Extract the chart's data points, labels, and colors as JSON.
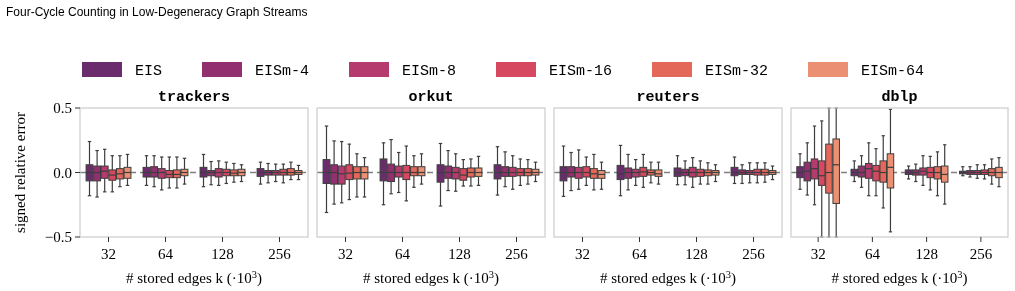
{
  "chart_data": [
    {
      "type": "box",
      "title": "trackers",
      "annotations": [
        "Four-Cycle Counting in Low-Degeneracy Graph Streams"
      ],
      "xlabel": "# stored edges k (·10$^{3}$)",
      "ylabel": "signed relative error",
      "categories": [
        "32",
        "64",
        "128",
        "256"
      ],
      "ylim": [
        -0.5,
        0.5
      ],
      "yticks": [
        {
          "value": -0.5,
          "label": "−0.5"
        },
        {
          "value": 0,
          "label": "0.0"
        },
        0.5
      ],
      "legend": "top",
      "ref_lines": [
        {
          "axis": "y",
          "value": 0,
          "color": "#808080",
          "line_style": "dashed"
        }
      ],
      "series": [
        {
          "name": "EIS",
          "color": "#6b2c6e",
          "boxes": [
            {
              "low": -0.18,
              "q1": -0.065,
              "median": 0,
              "q3": 0.06,
              "high": 0.24
            },
            {
              "low": -0.1,
              "q1": -0.035,
              "median": 0,
              "q3": 0.04,
              "high": 0.13
            },
            {
              "low": -0.11,
              "q1": -0.035,
              "median": 0,
              "q3": 0.04,
              "high": 0.14
            },
            {
              "low": -0.09,
              "q1": -0.03,
              "median": 0,
              "q3": 0.03,
              "high": 0.08
            }
          ]
        },
        {
          "name": "EISm-4",
          "color": "#922f6f",
          "boxes": [
            {
              "low": -0.19,
              "q1": -0.065,
              "median": 0,
              "q3": 0.05,
              "high": 0.17
            },
            {
              "low": -0.11,
              "q1": -0.035,
              "median": 0,
              "q3": 0.045,
              "high": 0.13
            },
            {
              "low": -0.095,
              "q1": -0.025,
              "median": 0,
              "q3": 0.015,
              "high": 0.085
            },
            {
              "low": -0.08,
              "q1": -0.02,
              "median": 0,
              "q3": 0.015,
              "high": 0.07
            }
          ]
        },
        {
          "name": "EISm-8",
          "color": "#b53a6d",
          "boxes": [
            {
              "low": -0.15,
              "q1": -0.045,
              "median": 0.01,
              "q3": 0.05,
              "high": 0.18
            },
            {
              "low": -0.135,
              "q1": -0.045,
              "median": 0,
              "q3": 0.03,
              "high": 0.12
            },
            {
              "low": -0.1,
              "q1": -0.035,
              "median": 0,
              "q3": 0.03,
              "high": 0.09
            },
            {
              "low": -0.07,
              "q1": -0.02,
              "median": 0,
              "q3": 0.015,
              "high": 0.065
            }
          ]
        },
        {
          "name": "EISm-16",
          "color": "#d6485f",
          "boxes": [
            {
              "low": -0.15,
              "q1": -0.06,
              "median": -0.02,
              "q3": 0.02,
              "high": 0.13
            },
            {
              "low": -0.12,
              "q1": -0.04,
              "median": -0.015,
              "q3": 0.015,
              "high": 0.12
            },
            {
              "low": -0.085,
              "q1": -0.025,
              "median": 0,
              "q3": 0.025,
              "high": 0.08
            },
            {
              "low": -0.08,
              "q1": -0.02,
              "median": 0,
              "q3": 0.025,
              "high": 0.065
            }
          ]
        },
        {
          "name": "EISm-32",
          "color": "#e4685a",
          "boxes": [
            {
              "low": -0.11,
              "q1": -0.05,
              "median": -0.01,
              "q3": 0.03,
              "high": 0.13
            },
            {
              "low": -0.12,
              "q1": -0.04,
              "median": -0.015,
              "q3": 0.02,
              "high": 0.12
            },
            {
              "low": -0.075,
              "q1": -0.025,
              "median": -0.005,
              "q3": 0.02,
              "high": 0.07
            },
            {
              "low": -0.055,
              "q1": -0.02,
              "median": 0,
              "q3": 0.03,
              "high": 0.08
            }
          ]
        },
        {
          "name": "EISm-64",
          "color": "#eb9072",
          "boxes": [
            {
              "low": -0.1,
              "q1": -0.045,
              "median": 0,
              "q3": 0.04,
              "high": 0.14
            },
            {
              "low": -0.09,
              "q1": -0.025,
              "median": 0,
              "q3": 0.025,
              "high": 0.11
            },
            {
              "low": -0.07,
              "q1": -0.025,
              "median": 0,
              "q3": 0.025,
              "high": 0.06
            },
            {
              "low": -0.055,
              "q1": -0.015,
              "median": 0,
              "q3": 0.015,
              "high": 0.055
            }
          ]
        }
      ]
    },
    {
      "type": "box",
      "title": "orkut",
      "xlabel": "# stored edges k (·10$^{3}$)",
      "categories": [
        "32",
        "64",
        "128",
        "256"
      ],
      "ylim": [
        -0.5,
        0.5
      ],
      "tick_labels": "x",
      "ref_lines": [
        {
          "axis": "y",
          "value": 0,
          "color": "#808080",
          "line_style": "dashed"
        }
      ],
      "series": [
        {
          "color": "#6b2c6e",
          "boxes": [
            {
              "low": -0.31,
              "q1": -0.085,
              "median": 0,
              "q3": 0.1,
              "high": 0.36
            },
            {
              "low": -0.25,
              "q1": -0.065,
              "median": 0,
              "q3": 0.105,
              "high": 0.23
            },
            {
              "low": -0.26,
              "q1": -0.075,
              "median": 0,
              "q3": 0.06,
              "high": 0.225
            },
            {
              "low": -0.175,
              "q1": -0.05,
              "median": 0,
              "q3": 0.06,
              "high": 0.2
            }
          ]
        },
        {
          "color": "#922f6f",
          "boxes": [
            {
              "low": -0.245,
              "q1": -0.09,
              "median": 0,
              "q3": 0.06,
              "high": 0.245
            },
            {
              "low": -0.165,
              "q1": -0.07,
              "median": 0,
              "q3": 0.065,
              "high": 0.255
            },
            {
              "low": -0.14,
              "q1": -0.045,
              "median": 0,
              "q3": 0.05,
              "high": 0.17
            },
            {
              "low": -0.11,
              "q1": -0.03,
              "median": 0,
              "q3": 0.045,
              "high": 0.16
            }
          ]
        },
        {
          "color": "#b53a6d",
          "boxes": [
            {
              "low": -0.235,
              "q1": -0.09,
              "median": -0.01,
              "q3": 0.05,
              "high": 0.24
            },
            {
              "low": -0.155,
              "q1": -0.035,
              "median": 0,
              "q3": 0.05,
              "high": 0.155
            },
            {
              "low": -0.145,
              "q1": -0.05,
              "median": 0,
              "q3": 0.04,
              "high": 0.145
            },
            {
              "low": -0.13,
              "q1": -0.03,
              "median": 0,
              "q3": 0.04,
              "high": 0.13
            }
          ]
        },
        {
          "color": "#d6485f",
          "boxes": [
            {
              "low": -0.21,
              "q1": -0.055,
              "median": -0.005,
              "q3": 0.06,
              "high": 0.22
            },
            {
              "low": -0.22,
              "q1": -0.055,
              "median": 0,
              "q3": 0.055,
              "high": 0.205
            },
            {
              "low": -0.105,
              "q1": -0.06,
              "median": -0.02,
              "q3": 0.03,
              "high": 0.1
            },
            {
              "low": -0.1,
              "q1": -0.025,
              "median": 0,
              "q3": 0.03,
              "high": 0.105
            }
          ]
        },
        {
          "color": "#e4685a",
          "boxes": [
            {
              "low": -0.19,
              "q1": -0.05,
              "median": 0,
              "q3": 0.045,
              "high": 0.145
            },
            {
              "low": -0.115,
              "q1": -0.025,
              "median": 0,
              "q3": 0.045,
              "high": 0.13
            },
            {
              "low": -0.105,
              "q1": -0.035,
              "median": 0,
              "q3": 0.035,
              "high": 0.105
            },
            {
              "low": -0.09,
              "q1": -0.025,
              "median": 0,
              "q3": 0.03,
              "high": 0.1
            }
          ]
        },
        {
          "color": "#eb9072",
          "boxes": [
            {
              "low": -0.19,
              "q1": -0.05,
              "median": 0,
              "q3": 0.045,
              "high": 0.115
            },
            {
              "low": -0.09,
              "q1": -0.025,
              "median": 0,
              "q3": 0.045,
              "high": 0.145
            },
            {
              "low": -0.1,
              "q1": -0.03,
              "median": 0,
              "q3": 0.035,
              "high": 0.125
            },
            {
              "low": -0.07,
              "q1": -0.02,
              "median": 0,
              "q3": 0.025,
              "high": 0.08
            }
          ]
        }
      ]
    },
    {
      "type": "box",
      "title": "reuters",
      "xlabel": "# stored edges k (·10$^{3}$)",
      "categories": [
        "32",
        "64",
        "128",
        "256"
      ],
      "ylim": [
        -0.5,
        0.5
      ],
      "tick_labels": "x",
      "ref_lines": [
        {
          "axis": "y",
          "value": 0,
          "color": "#808080",
          "line_style": "dashed"
        }
      ],
      "series": [
        {
          "color": "#6b2c6e",
          "boxes": [
            {
              "low": -0.185,
              "q1": -0.065,
              "median": 0,
              "q3": 0.045,
              "high": 0.205
            },
            {
              "low": -0.18,
              "q1": -0.055,
              "median": -0.01,
              "q3": 0.055,
              "high": 0.21
            },
            {
              "low": -0.095,
              "q1": -0.03,
              "median": 0,
              "q3": 0.035,
              "high": 0.13
            },
            {
              "low": -0.085,
              "q1": -0.025,
              "median": 0,
              "q3": 0.04,
              "high": 0.12
            }
          ]
        },
        {
          "color": "#922f6f",
          "boxes": [
            {
              "low": -0.14,
              "q1": -0.035,
              "median": 0,
              "q3": 0.045,
              "high": 0.155
            },
            {
              "low": -0.135,
              "q1": -0.045,
              "median": 0,
              "q3": 0.035,
              "high": 0.14
            },
            {
              "low": -0.095,
              "q1": -0.025,
              "median": 0,
              "q3": 0.025,
              "high": 0.09
            },
            {
              "low": -0.085,
              "q1": -0.015,
              "median": 0,
              "q3": 0.02,
              "high": 0.06
            }
          ]
        },
        {
          "color": "#b53a6d",
          "boxes": [
            {
              "low": -0.13,
              "q1": -0.045,
              "median": 0,
              "q3": 0.04,
              "high": 0.175
            },
            {
              "low": -0.1,
              "q1": -0.035,
              "median": 0,
              "q3": 0.025,
              "high": 0.1
            },
            {
              "low": -0.115,
              "q1": -0.035,
              "median": 0,
              "q3": 0.04,
              "high": 0.115
            },
            {
              "low": -0.08,
              "q1": -0.015,
              "median": 0,
              "q3": 0.015,
              "high": 0.075
            }
          ]
        },
        {
          "color": "#d6485f",
          "boxes": [
            {
              "low": -0.1,
              "q1": -0.035,
              "median": 0,
              "q3": 0.045,
              "high": 0.12
            },
            {
              "low": -0.115,
              "q1": -0.03,
              "median": 0.005,
              "q3": 0.04,
              "high": 0.14
            },
            {
              "low": -0.09,
              "q1": -0.03,
              "median": 0,
              "q3": 0.025,
              "high": 0.09
            },
            {
              "low": -0.08,
              "q1": -0.02,
              "median": 0,
              "q3": 0.025,
              "high": 0.075
            }
          ]
        },
        {
          "color": "#e4685a",
          "boxes": [
            {
              "low": -0.135,
              "q1": -0.045,
              "median": -0.01,
              "q3": 0.03,
              "high": 0.14
            },
            {
              "low": -0.08,
              "q1": -0.02,
              "median": 0,
              "q3": 0.02,
              "high": 0.08
            },
            {
              "low": -0.09,
              "q1": -0.025,
              "median": 0,
              "q3": 0.02,
              "high": 0.075
            },
            {
              "low": -0.075,
              "q1": -0.02,
              "median": 0,
              "q3": 0.025,
              "high": 0.075
            }
          ]
        },
        {
          "color": "#eb9072",
          "boxes": [
            {
              "low": -0.13,
              "q1": -0.045,
              "median": -0.015,
              "q3": 0.015,
              "high": 0.08
            },
            {
              "low": -0.09,
              "q1": -0.03,
              "median": -0.01,
              "q3": 0.02,
              "high": 0.08
            },
            {
              "low": -0.07,
              "q1": -0.02,
              "median": 0,
              "q3": 0.015,
              "high": 0.06
            },
            {
              "low": -0.055,
              "q1": -0.015,
              "median": 0,
              "q3": 0.015,
              "high": 0.05
            }
          ]
        }
      ]
    },
    {
      "type": "box",
      "title": "dblp",
      "xlabel": "# stored edges k (·10$^{3}$)",
      "categories": [
        "32",
        "64",
        "128",
        "256"
      ],
      "ylim": [
        -0.5,
        0.5
      ],
      "tick_labels": "x",
      "ref_lines": [
        {
          "axis": "y",
          "value": 0,
          "color": "#808080",
          "line_style": "dashed"
        }
      ],
      "series": [
        {
          "color": "#6b2c6e",
          "boxes": [
            {
              "low": -0.13,
              "q1": -0.04,
              "median": 0,
              "q3": 0.045,
              "high": 0.145
            },
            {
              "low": -0.07,
              "q1": -0.025,
              "median": 0,
              "q3": 0.025,
              "high": 0.09
            },
            {
              "low": -0.05,
              "q1": -0.015,
              "median": 0,
              "q3": 0.02,
              "high": 0.05
            },
            {
              "low": -0.025,
              "q1": -0.01,
              "median": 0,
              "q3": 0.01,
              "high": 0.045
            }
          ]
        },
        {
          "color": "#922f6f",
          "boxes": [
            {
              "low": -0.175,
              "q1": -0.065,
              "median": 0.01,
              "q3": 0.08,
              "high": 0.23
            },
            {
              "low": -0.115,
              "q1": -0.035,
              "median": 0,
              "q3": 0.05,
              "high": 0.13
            },
            {
              "low": -0.07,
              "q1": -0.02,
              "median": 0,
              "q3": 0.02,
              "high": 0.065
            },
            {
              "low": -0.035,
              "q1": -0.015,
              "median": 0,
              "q3": 0.015,
              "high": 0.045
            }
          ]
        },
        {
          "color": "#b53a6d",
          "boxes": [
            {
              "low": -0.25,
              "q1": -0.05,
              "median": 0.03,
              "q3": 0.105,
              "high": 0.36
            },
            {
              "low": -0.18,
              "q1": -0.045,
              "median": 0.03,
              "q3": 0.07,
              "high": 0.23
            },
            {
              "low": -0.1,
              "q1": -0.02,
              "median": 0.01,
              "q3": 0.035,
              "high": 0.13
            },
            {
              "low": -0.045,
              "q1": -0.015,
              "median": 0,
              "q3": 0.015,
              "high": 0.06
            }
          ]
        },
        {
          "color": "#d6485f",
          "boxes": [
            {
              "low": -0.5,
              "q1": -0.1,
              "median": -0.025,
              "q3": 0.09,
              "high": 0.4
            },
            {
              "low": -0.18,
              "q1": -0.065,
              "median": 0.01,
              "q3": 0.055,
              "high": 0.185
            },
            {
              "low": -0.135,
              "q1": -0.04,
              "median": 0,
              "q3": 0.04,
              "high": 0.125
            },
            {
              "low": -0.05,
              "q1": -0.015,
              "median": 0,
              "q3": 0.02,
              "high": 0.06
            }
          ]
        },
        {
          "color": "#e4685a",
          "boxes": [
            {
              "low": -0.5,
              "q1": -0.16,
              "median": 0,
              "q3": 0.22,
              "high": 0.5
            },
            {
              "low": -0.275,
              "q1": -0.075,
              "median": 0,
              "q3": 0.09,
              "high": 0.285
            },
            {
              "low": -0.18,
              "q1": -0.05,
              "median": 0,
              "q3": 0.045,
              "high": 0.16
            },
            {
              "low": -0.09,
              "q1": -0.025,
              "median": 0,
              "q3": 0.03,
              "high": 0.105
            }
          ]
        },
        {
          "color": "#eb9072",
          "boxes": [
            {
              "low": -0.5,
              "q1": -0.24,
              "median": 0.06,
              "q3": 0.26,
              "high": 0.5
            },
            {
              "low": -0.46,
              "q1": -0.12,
              "median": 0.04,
              "q3": 0.145,
              "high": 0.49
            },
            {
              "low": -0.245,
              "q1": -0.075,
              "median": -0.015,
              "q3": 0.05,
              "high": 0.215
            },
            {
              "low": -0.11,
              "q1": -0.04,
              "median": 0,
              "q3": 0.04,
              "high": 0.115
            }
          ]
        }
      ]
    }
  ]
}
